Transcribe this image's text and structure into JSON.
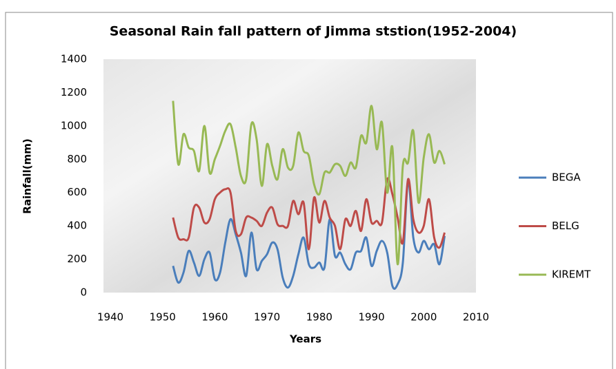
{
  "chart_data": {
    "type": "line",
    "title": "Seasonal Rain fall pattern of  Jimma ststion(1952-2004)",
    "x_label": "Years",
    "y_label": "Rainfall(mm)",
    "x": [
      1952,
      1953,
      1954,
      1955,
      1956,
      1957,
      1958,
      1959,
      1960,
      1961,
      1962,
      1963,
      1964,
      1965,
      1966,
      1967,
      1968,
      1969,
      1970,
      1971,
      1972,
      1973,
      1974,
      1975,
      1976,
      1977,
      1978,
      1979,
      1980,
      1981,
      1982,
      1983,
      1984,
      1985,
      1986,
      1987,
      1988,
      1989,
      1990,
      1991,
      1992,
      1993,
      1994,
      1995,
      1996,
      1997,
      1998,
      1999,
      2000,
      2001,
      2002,
      2003,
      2004
    ],
    "series": [
      {
        "name": "BEGA",
        "color": "#4a7ebb",
        "values": [
          160,
          60,
          120,
          250,
          180,
          100,
          200,
          240,
          80,
          120,
          300,
          440,
          350,
          240,
          100,
          360,
          140,
          190,
          230,
          300,
          260,
          90,
          30,
          100,
          230,
          330,
          170,
          150,
          180,
          150,
          440,
          220,
          240,
          170,
          140,
          240,
          250,
          330,
          160,
          250,
          310,
          240,
          40,
          50,
          180,
          670,
          330,
          240,
          310,
          260,
          290,
          170,
          340
        ]
      },
      {
        "name": "BELG",
        "color": "#be4b48",
        "values": [
          450,
          330,
          320,
          330,
          510,
          510,
          420,
          440,
          560,
          600,
          620,
          600,
          370,
          350,
          450,
          450,
          430,
          400,
          480,
          510,
          410,
          400,
          400,
          550,
          470,
          540,
          260,
          570,
          420,
          550,
          450,
          400,
          260,
          440,
          400,
          490,
          370,
          560,
          420,
          430,
          420,
          680,
          590,
          450,
          300,
          680,
          440,
          360,
          400,
          560,
          330,
          270,
          360
        ]
      },
      {
        "name": "KIREMT",
        "color": "#98b954",
        "values": [
          1150,
          770,
          950,
          870,
          850,
          730,
          1000,
          720,
          800,
          880,
          970,
          1010,
          870,
          700,
          680,
          1010,
          920,
          640,
          890,
          760,
          680,
          860,
          750,
          760,
          960,
          850,
          820,
          650,
          590,
          720,
          720,
          770,
          760,
          700,
          780,
          750,
          940,
          900,
          1120,
          860,
          1020,
          600,
          870,
          170,
          760,
          780,
          970,
          540,
          810,
          950,
          780,
          850,
          770
        ]
      }
    ],
    "xlim": [
      1940,
      2010
    ],
    "xticks": [
      1940,
      1950,
      1960,
      1970,
      1980,
      1990,
      2000,
      2010
    ],
    "ylim": [
      0,
      1400
    ],
    "yticks": [
      0,
      200,
      400,
      600,
      800,
      1000,
      1200,
      1400
    ],
    "legend": "right"
  }
}
